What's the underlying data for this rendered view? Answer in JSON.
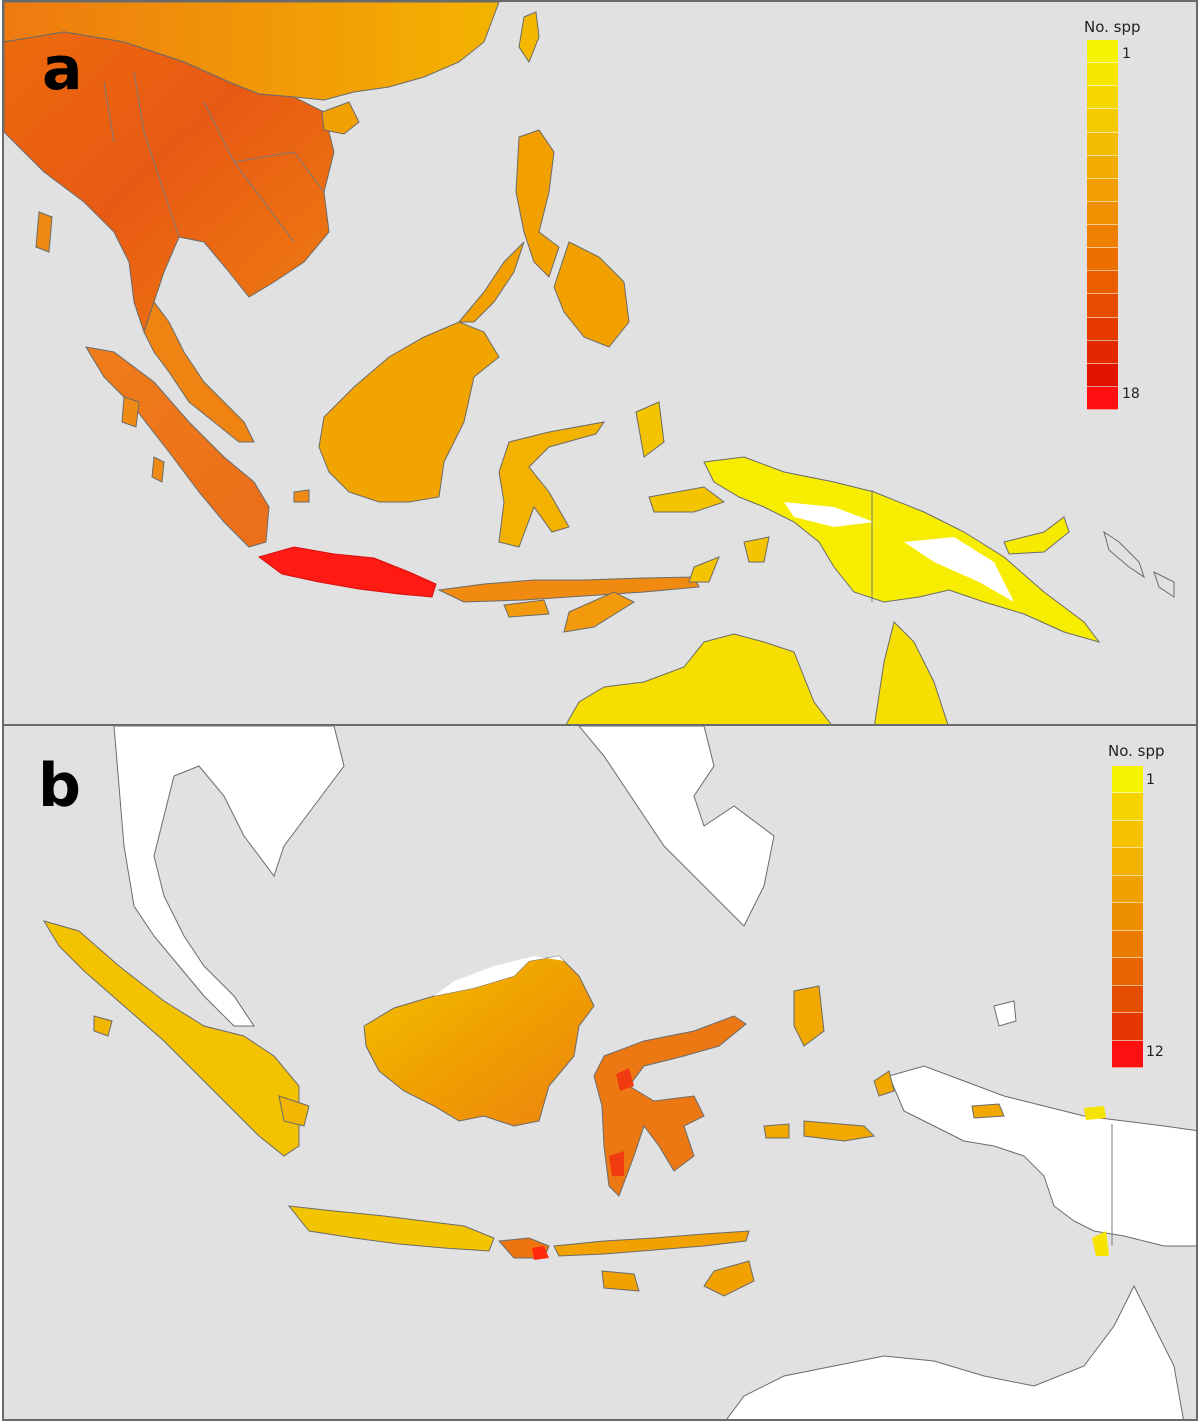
{
  "panels": [
    {
      "letter": "a",
      "legend": {
        "title": "No. spp",
        "min_label": "1",
        "max_label": "18",
        "min_value": 1,
        "max_value": 18,
        "colors": [
          "#f7f300",
          "#f7e600",
          "#f6d800",
          "#f5ca00",
          "#f4bc00",
          "#f3ad00",
          "#f29e00",
          "#f08f00",
          "#ee7f00",
          "#ec6f00",
          "#ea5e00",
          "#e84c00",
          "#e63a00",
          "#e42700",
          "#e21300",
          "#ff0f0f"
        ]
      }
    },
    {
      "letter": "b",
      "legend": {
        "title": "No. spp",
        "min_label": "1",
        "max_label": "12",
        "min_value": 1,
        "max_value": 12,
        "colors": [
          "#f7f300",
          "#f5d200",
          "#f4c200",
          "#f2b200",
          "#f0a100",
          "#ee8f00",
          "#eb7a00",
          "#e86400",
          "#e54e00",
          "#e33600",
          "#ff1010"
        ]
      }
    }
  ],
  "colors": {
    "sea": "#e1e1e1",
    "coast": "#6b6b6b",
    "unoccupied_land": "#ffffff",
    "frame": "#6a6a6a"
  }
}
